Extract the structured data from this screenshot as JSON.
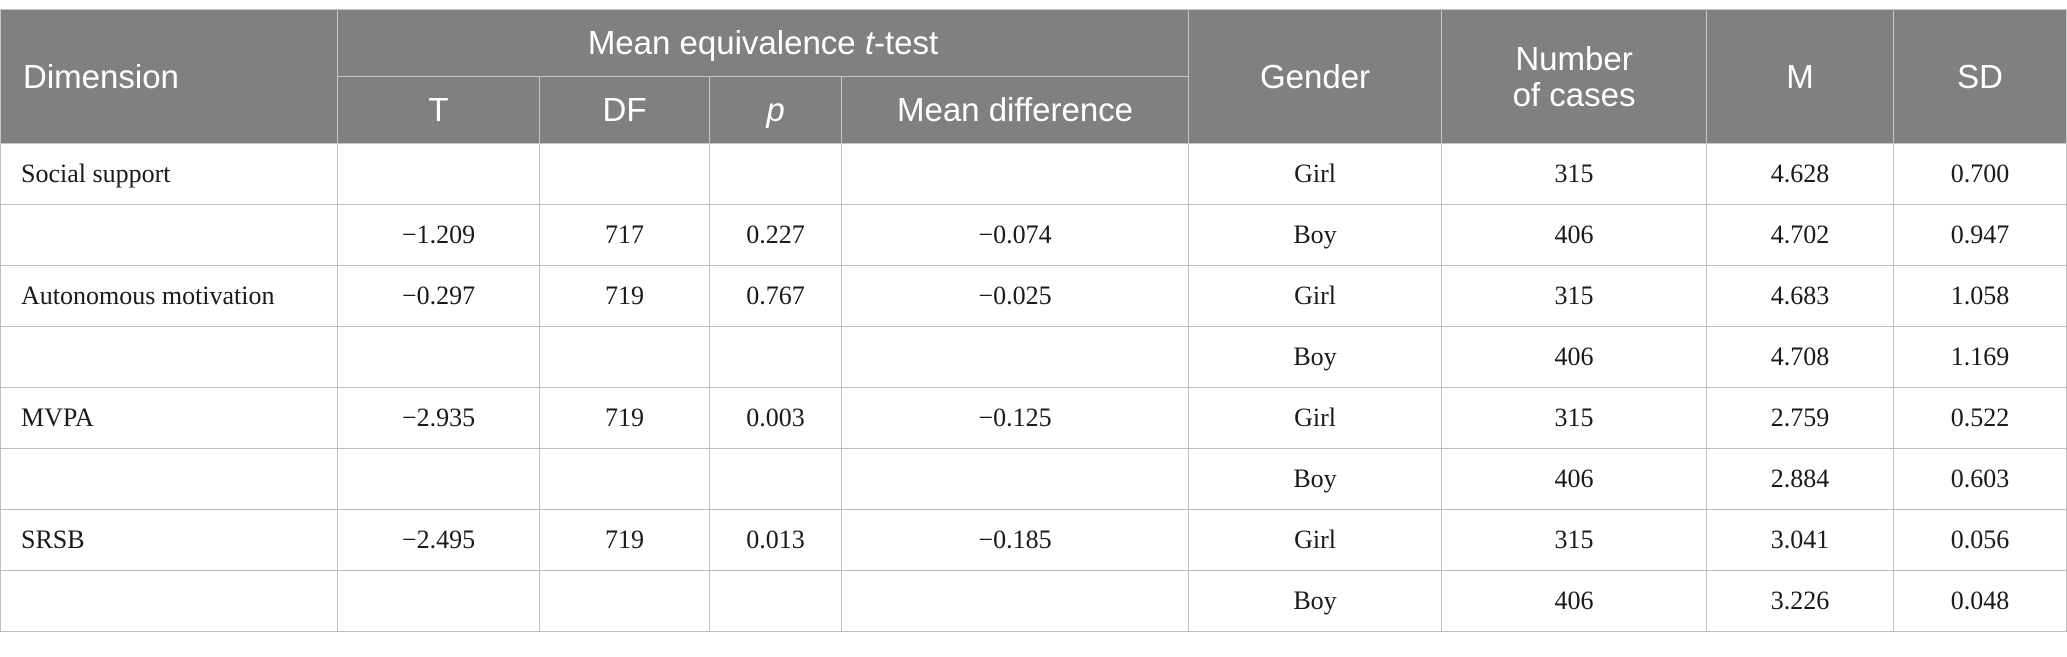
{
  "header": {
    "dimension": "Dimension",
    "group_title_pre": "Mean equivalence ",
    "group_title_italic": "t",
    "group_title_post": "-test",
    "col_t": "T",
    "col_df": "DF",
    "col_p": "p",
    "col_mean_diff": "Mean difference",
    "col_gender": "Gender",
    "col_cases_line1": "Number",
    "col_cases_line2": "of cases",
    "col_m": "M",
    "col_sd": "SD"
  },
  "rows": [
    {
      "dimension": "Social support",
      "t": "",
      "df": "",
      "p": "",
      "mean_diff": "",
      "gender": "Girl",
      "n": "315",
      "m": "4.628",
      "sd": "0.700"
    },
    {
      "dimension": "",
      "t": "−1.209",
      "df": "717",
      "p": "0.227",
      "mean_diff": "−0.074",
      "gender": "Boy",
      "n": "406",
      "m": "4.702",
      "sd": "0.947"
    },
    {
      "dimension": "Autonomous motivation",
      "t": "−0.297",
      "df": "719",
      "p": "0.767",
      "mean_diff": "−0.025",
      "gender": "Girl",
      "n": "315",
      "m": "4.683",
      "sd": "1.058"
    },
    {
      "dimension": "",
      "t": "",
      "df": "",
      "p": "",
      "mean_diff": "",
      "gender": "Boy",
      "n": "406",
      "m": "4.708",
      "sd": "1.169"
    },
    {
      "dimension": "MVPA",
      "t": "−2.935",
      "df": "719",
      "p": "0.003",
      "mean_diff": "−0.125",
      "gender": "Girl",
      "n": "315",
      "m": "2.759",
      "sd": "0.522"
    },
    {
      "dimension": "",
      "t": "",
      "df": "",
      "p": "",
      "mean_diff": "",
      "gender": "Boy",
      "n": "406",
      "m": "2.884",
      "sd": "0.603"
    },
    {
      "dimension": "SRSB",
      "t": "−2.495",
      "df": "719",
      "p": "0.013",
      "mean_diff": "−0.185",
      "gender": "Girl",
      "n": "315",
      "m": "3.041",
      "sd": "0.056"
    },
    {
      "dimension": "",
      "t": "",
      "df": "",
      "p": "",
      "mean_diff": "",
      "gender": "Boy",
      "n": "406",
      "m": "3.226",
      "sd": "0.048"
    }
  ]
}
